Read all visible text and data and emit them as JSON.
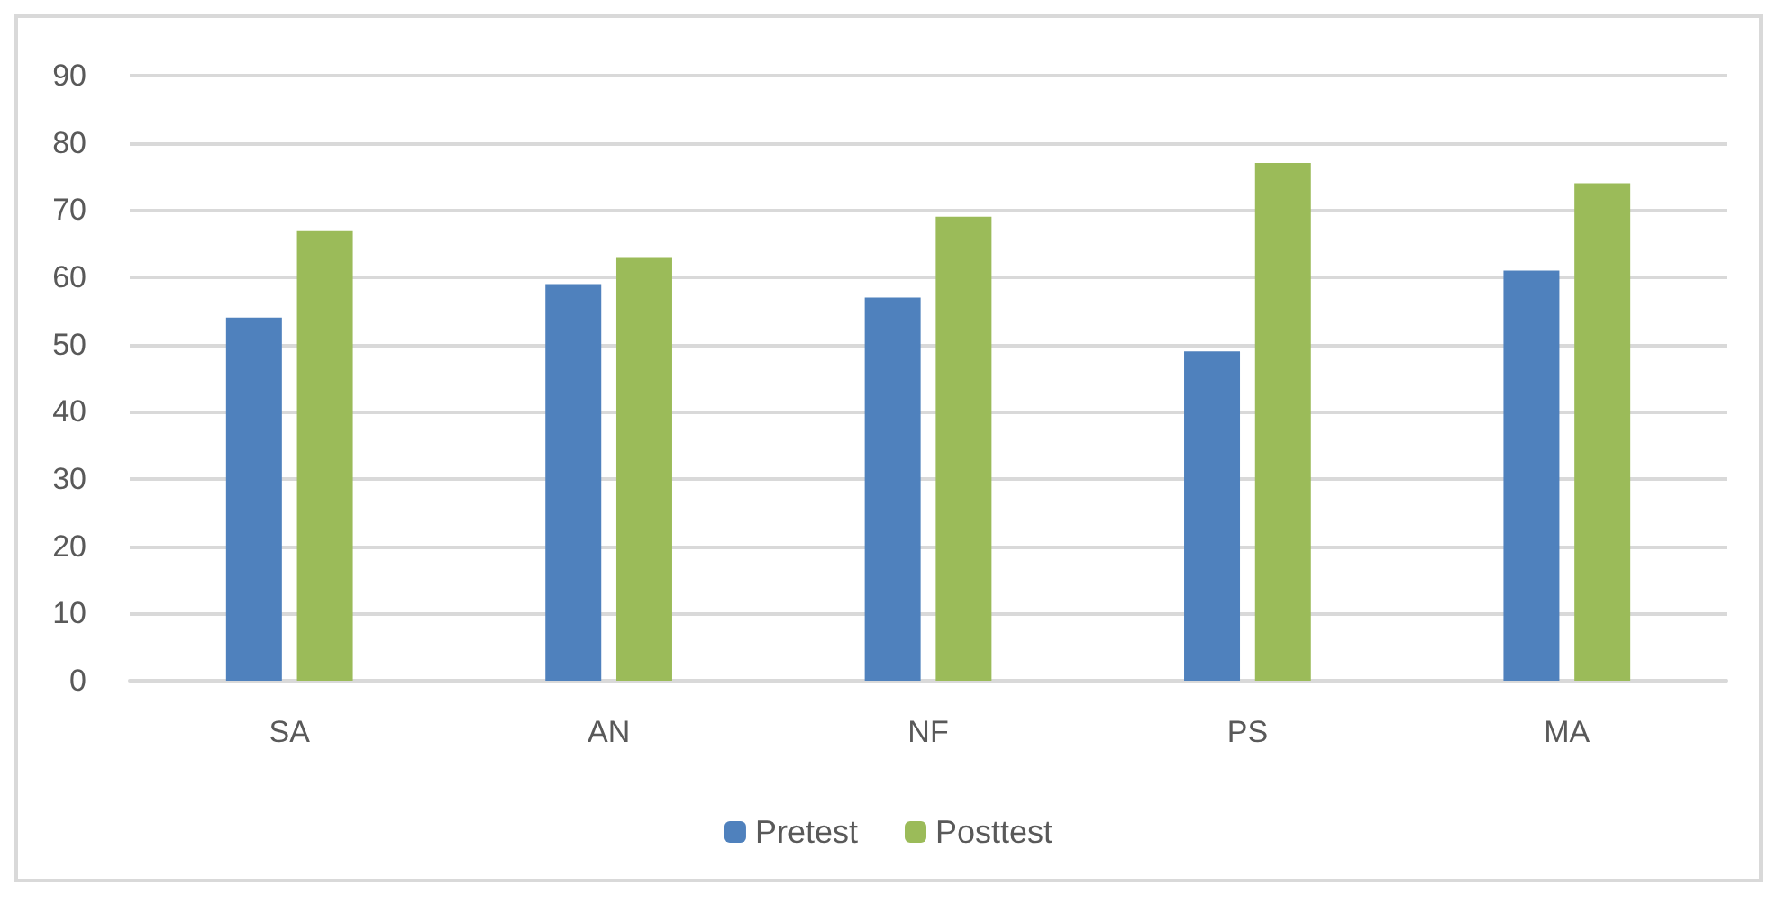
{
  "chart_data": {
    "type": "bar",
    "categories": [
      "SA",
      "AN",
      "NF",
      "PS",
      "MA"
    ],
    "series": [
      {
        "name": "Pretest",
        "color": "#4f81bd",
        "values": [
          54,
          59,
          57,
          49,
          61
        ]
      },
      {
        "name": "Posttest",
        "color": "#9bbb59",
        "values": [
          67,
          63,
          69,
          77,
          74
        ]
      }
    ],
    "ylim": [
      0,
      90
    ],
    "yticks": [
      0,
      10,
      20,
      30,
      40,
      50,
      60,
      70,
      80,
      90
    ],
    "grid": "y",
    "legend": "bottom"
  }
}
